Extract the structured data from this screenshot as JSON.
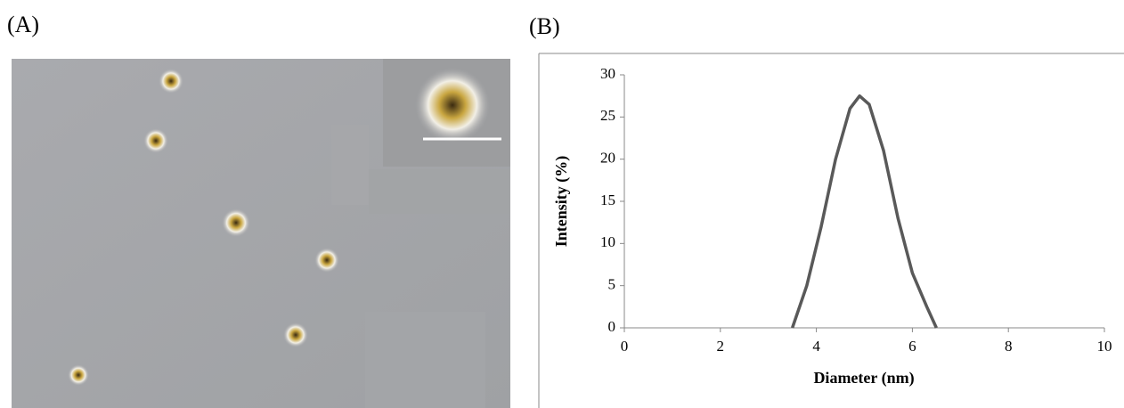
{
  "panels": {
    "a": "(A)",
    "b": "(B)"
  },
  "chart_data": {
    "type": "line",
    "x": [
      3.5,
      3.8,
      4.1,
      4.4,
      4.7,
      4.9,
      5.1,
      5.4,
      5.7,
      6.0,
      6.3,
      6.5
    ],
    "series": [
      {
        "color": "#595959",
        "values": [
          0,
          5,
          12,
          20,
          26,
          27.5,
          26.5,
          21,
          13,
          6.5,
          2.5,
          0
        ]
      }
    ],
    "xlabel": "Diameter (nm)",
    "ylabel": "Intensity (%)",
    "xlim": [
      0,
      10
    ],
    "xticks": [
      0,
      2,
      4,
      6,
      8,
      10
    ],
    "ylim": [
      0,
      30
    ],
    "yticks": [
      0,
      5,
      10,
      15,
      20,
      25,
      30
    ]
  }
}
